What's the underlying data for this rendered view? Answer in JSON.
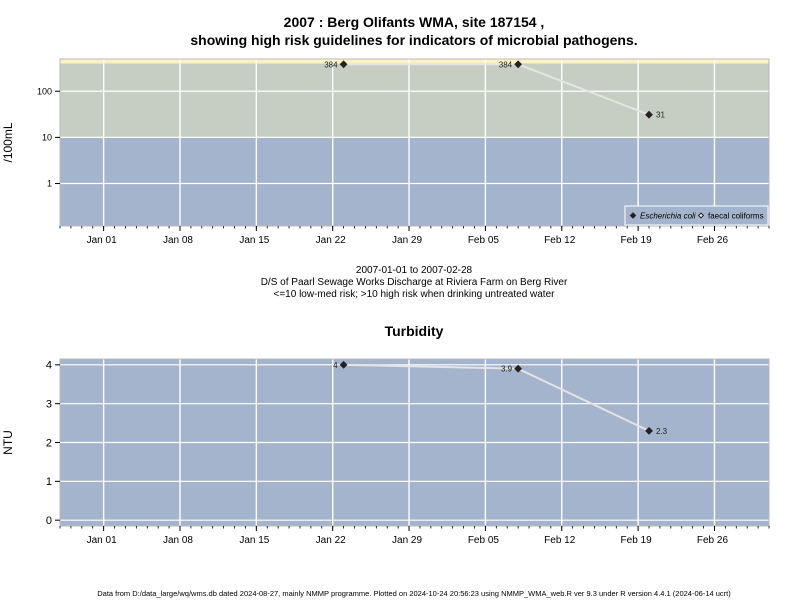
{
  "chart_data": [
    {
      "type": "scatter",
      "title": "2007 : Berg Olifants WMA, site 187154 ,",
      "subtitle": "showing high risk guidelines for indicators of microbial pathogens.",
      "ylabel": "/100mL",
      "y_scale": "log",
      "ylim": [
        0.12,
        500
      ],
      "xlim": [
        "2006-12-28",
        "2007-03-03"
      ],
      "y_ticks": [
        1,
        10,
        100
      ],
      "y_tick_labels": [
        "1",
        "10",
        "100"
      ],
      "x_ticks": [
        "2007-01-01",
        "2007-01-08",
        "2007-01-15",
        "2007-01-22",
        "2007-01-29",
        "2007-02-05",
        "2007-02-12",
        "2007-02-19",
        "2007-02-26"
      ],
      "x_tick_labels": [
        "Jan 01",
        "Jan 08",
        "Jan 15",
        "Jan 22",
        "Jan 29",
        "Feb 05",
        "Feb 12",
        "Feb 19",
        "Feb 26"
      ],
      "bands": [
        {
          "from": 0.12,
          "to": 10,
          "color": "#a3b4cc"
        },
        {
          "from": 10,
          "to": 400,
          "color": "#c6cdc2"
        },
        {
          "from": 400,
          "to": 500,
          "color": "#fbf3c3"
        }
      ],
      "grid": true,
      "legend_position": "bottom-right",
      "series": [
        {
          "name": "Escherichia coli",
          "marker": "filled-diamond",
          "points": [
            {
              "x": "2007-01-23",
              "y": 384,
              "label": "384"
            },
            {
              "x": "2007-02-08",
              "y": 384,
              "label": "384"
            },
            {
              "x": "2007-02-20",
              "y": 31,
              "label": "31"
            }
          ]
        },
        {
          "name": "faecal coliforms",
          "marker": "open-diamond",
          "points": []
        }
      ],
      "caption_lines": [
        "2007-01-01 to 2007-02-28",
        "D/S of Paarl Sewage Works Discharge at Riviera Farm on Berg River",
        "<=10 low-med risk; >10 high risk when drinking untreated water"
      ]
    },
    {
      "type": "scatter",
      "title": "Turbidity",
      "ylabel": "NTU",
      "ylim": [
        -0.15,
        4.15
      ],
      "xlim": [
        "2006-12-28",
        "2007-03-03"
      ],
      "y_ticks": [
        0,
        1,
        2,
        3,
        4
      ],
      "y_tick_labels": [
        "0",
        "1",
        "2",
        "3",
        "4"
      ],
      "x_ticks": [
        "2007-01-01",
        "2007-01-08",
        "2007-01-15",
        "2007-01-22",
        "2007-01-29",
        "2007-02-05",
        "2007-02-12",
        "2007-02-19",
        "2007-02-26"
      ],
      "x_tick_labels": [
        "Jan 01",
        "Jan 08",
        "Jan 15",
        "Jan 22",
        "Jan 29",
        "Feb 05",
        "Feb 12",
        "Feb 19",
        "Feb 26"
      ],
      "bands": [
        {
          "from": -0.15,
          "to": 4.15,
          "color": "#a3b4cc"
        }
      ],
      "grid": true,
      "series": [
        {
          "marker": "filled-diamond",
          "points": [
            {
              "x": "2007-01-23",
              "y": 4,
              "label": "4"
            },
            {
              "x": "2007-02-08",
              "y": 3.9,
              "label": "3.9"
            },
            {
              "x": "2007-02-20",
              "y": 2.3,
              "label": "2.3"
            }
          ]
        }
      ]
    }
  ],
  "footer": "Data from D:/data_large/wq/wms.db dated 2024-08-27, mainly NMMP programme. Plotted on 2024-10-24 20:56:23 using NMMP_WMA_web.R ver 9.3 under R version 4.4.1 (2024-06-14 ucrt)"
}
